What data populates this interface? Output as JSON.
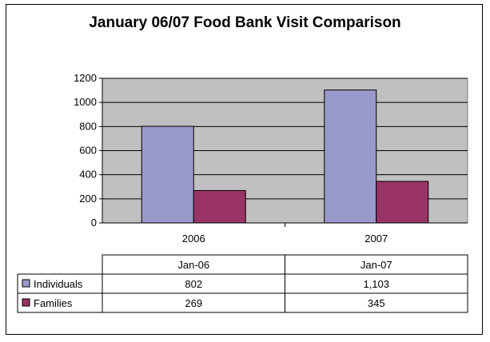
{
  "chart_data": {
    "type": "bar",
    "title": "January 06/07 Food Bank Visit Comparison",
    "categories": [
      "2006",
      "2007"
    ],
    "series": [
      {
        "name": "Individuals",
        "values": [
          802,
          1103
        ],
        "color": "#9999cc"
      },
      {
        "name": "Families",
        "values": [
          269,
          345
        ],
        "color": "#993366"
      }
    ],
    "ylim": [
      0,
      1200
    ],
    "yticks": [
      "0",
      "200",
      "400",
      "600",
      "800",
      "1000",
      "1200"
    ],
    "plot_background": "#c0c0c0",
    "grid": true,
    "data_table": {
      "columns": [
        "Jan-06",
        "Jan-07"
      ],
      "rows": [
        {
          "label": "Individuals",
          "cells": [
            "802",
            "1,103"
          ]
        },
        {
          "label": "Families",
          "cells": [
            "269",
            "345"
          ]
        }
      ]
    }
  }
}
